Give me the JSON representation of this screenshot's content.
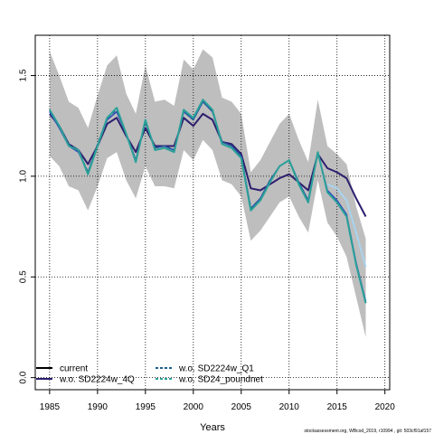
{
  "chart_data": {
    "type": "line",
    "title": "",
    "xlabel": "Years",
    "ylabel": "",
    "xlim": [
      1983.5,
      2020.5
    ],
    "ylim": [
      -0.06,
      1.7
    ],
    "xticks": [
      1985,
      1990,
      1995,
      2000,
      2005,
      2010,
      2015,
      2020
    ],
    "yticks": [
      0.0,
      0.5,
      1.0,
      1.5
    ],
    "ytick_labels": [
      "0.0",
      "0.5",
      "1.0",
      "1.5"
    ],
    "grid": true,
    "legend_position": "bottom-left",
    "x": [
      1985,
      1986,
      1987,
      1988,
      1989,
      1990,
      1991,
      1992,
      1993,
      1994,
      1995,
      1996,
      1997,
      1998,
      1999,
      2000,
      2001,
      2002,
      2003,
      2004,
      2005,
      2006,
      2007,
      2008,
      2009,
      2010,
      2011,
      2012,
      2013,
      2014,
      2015,
      2016,
      2017,
      2018
    ],
    "band": {
      "color": "#bebebe",
      "upper": [
        1.62,
        1.5,
        1.37,
        1.34,
        1.24,
        1.4,
        1.55,
        1.6,
        1.41,
        1.31,
        1.55,
        1.37,
        1.38,
        1.35,
        1.58,
        1.53,
        1.63,
        1.59,
        1.39,
        1.37,
        1.31,
        1.02,
        1.08,
        1.17,
        1.26,
        1.31,
        1.18,
        1.07,
        1.38,
        1.15,
        1.11,
        1.06,
        0.85,
        0.69
      ],
      "lower": [
        1.1,
        1.05,
        0.95,
        0.93,
        0.83,
        0.95,
        1.09,
        1.12,
        0.98,
        0.89,
        1.05,
        0.95,
        0.95,
        0.94,
        1.13,
        1.08,
        1.18,
        1.13,
        0.98,
        0.96,
        0.9,
        0.68,
        0.73,
        0.8,
        0.87,
        0.9,
        0.8,
        0.72,
        0.98,
        0.77,
        0.7,
        0.6,
        0.4,
        0.2
      ]
    },
    "series": [
      {
        "name": "current",
        "color": "#2d1e6e",
        "dash": "solid",
        "width": 2,
        "values": [
          1.31,
          1.25,
          1.16,
          1.13,
          1.06,
          1.15,
          1.26,
          1.29,
          1.2,
          1.12,
          1.24,
          1.15,
          1.15,
          1.15,
          1.29,
          1.25,
          1.31,
          1.28,
          1.17,
          1.16,
          1.11,
          0.94,
          0.93,
          0.96,
          0.99,
          1.01,
          0.97,
          0.93,
          1.11,
          1.04,
          1.02,
          0.99,
          0.89,
          0.8
        ]
      },
      {
        "name": "w.o. SD2224w_4Q",
        "color": "#2e4bb8",
        "dash": "solid",
        "width": 1.5,
        "values": [
          1.32,
          1.24,
          1.15,
          1.12,
          1.02,
          1.15,
          1.28,
          1.32,
          1.21,
          1.08,
          1.27,
          1.14,
          1.15,
          1.13,
          1.32,
          1.28,
          1.37,
          1.32,
          1.17,
          1.15,
          1.1,
          0.84,
          0.89,
          0.98,
          1.05,
          1.08,
          0.97,
          0.88,
          1.12,
          0.93,
          0.88,
          0.81,
          0.57,
          0.38
        ]
      },
      {
        "name": "w.o. SD2224w_Q1",
        "color": "#1f5f8e",
        "dash": "dashed",
        "width": 1.5,
        "values": [
          1.33,
          1.25,
          1.16,
          1.13,
          1.02,
          1.16,
          1.29,
          1.33,
          1.21,
          1.08,
          1.27,
          1.14,
          1.15,
          1.13,
          1.32,
          1.28,
          1.37,
          1.32,
          1.17,
          1.15,
          1.1,
          0.84,
          0.89,
          0.98,
          1.05,
          1.08,
          0.97,
          0.88,
          1.12,
          0.92,
          0.87,
          0.8,
          0.56,
          0.37
        ]
      },
      {
        "name": "w.o. SD24_poundnet",
        "color": "#2aa198",
        "dash": "solid",
        "width": 2,
        "values": [
          1.33,
          1.25,
          1.15,
          1.13,
          1.01,
          1.15,
          1.29,
          1.34,
          1.21,
          1.07,
          1.28,
          1.13,
          1.14,
          1.12,
          1.33,
          1.29,
          1.38,
          1.33,
          1.16,
          1.14,
          1.09,
          0.83,
          0.88,
          0.97,
          1.05,
          1.08,
          0.96,
          0.87,
          1.12,
          0.92,
          0.87,
          0.8,
          0.56,
          0.37
        ]
      },
      {
        "name": "",
        "color": "#a8d4ee",
        "dash": "solid",
        "width": 2,
        "values": [
          null,
          null,
          null,
          null,
          null,
          null,
          null,
          null,
          null,
          null,
          null,
          null,
          null,
          null,
          null,
          null,
          null,
          null,
          null,
          null,
          null,
          null,
          null,
          null,
          null,
          null,
          null,
          null,
          null,
          0.96,
          0.94,
          0.88,
          0.72,
          0.55
        ]
      }
    ],
    "legend": [
      {
        "name": "current",
        "color": "#000000",
        "dash": "solid"
      },
      {
        "name": "w.o. SD2224w_4Q",
        "color": "#2d1e6e",
        "dash": "solid"
      },
      {
        "name": "w.o. SD2224w_Q1",
        "color": "#1f5f8e",
        "dash": "dashed"
      },
      {
        "name": "w.o. SD24_poundnet",
        "color": "#2aa198",
        "dash": "dashed"
      }
    ],
    "footnote": "stockassessment.org, WBcod_2019, r10994 , git: 503cf91af157"
  }
}
